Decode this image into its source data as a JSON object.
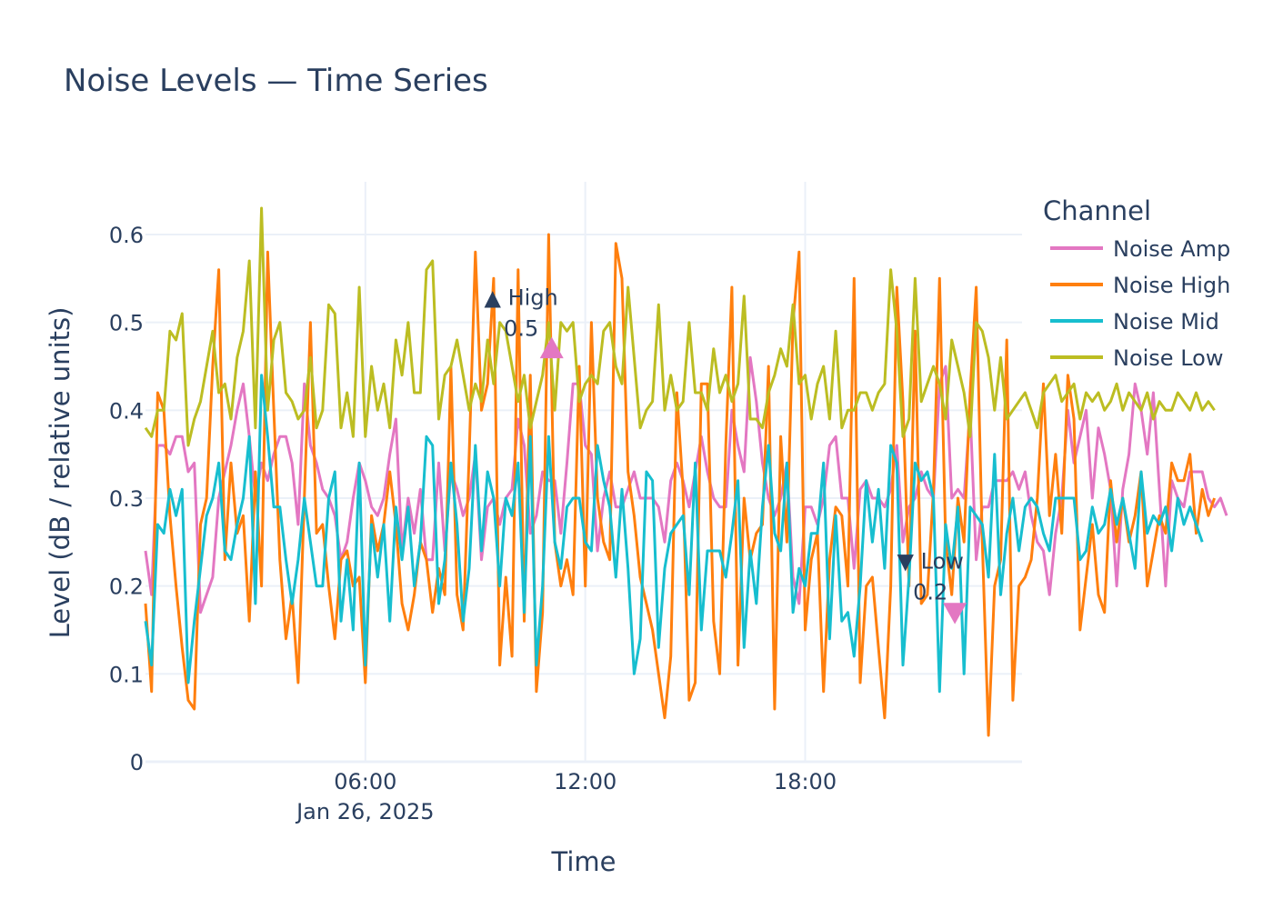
{
  "chart_data": {
    "type": "line",
    "title": "Noise Levels — Time Series",
    "xlabel": "Time",
    "ylabel": "Level (dB / relative units)",
    "x_range": [
      "2025-01-26 00:00",
      "2025-01-26 23:55"
    ],
    "x_step_minutes": 10,
    "ylim": [
      0,
      0.66
    ],
    "x_ticks": [
      {
        "time": "2025-01-26 06:00",
        "label": "06:00",
        "sublabel": "Jan 26, 2025"
      },
      {
        "time": "2025-01-26 12:00",
        "label": "12:00",
        "sublabel": ""
      },
      {
        "time": "2025-01-26 18:00",
        "label": "18:00",
        "sublabel": ""
      }
    ],
    "y_ticks": [
      0,
      0.1,
      0.2,
      0.3,
      0.4,
      0.5,
      0.6
    ],
    "y_tick_labels": [
      "0",
      "0.1",
      "0.2",
      "0.3",
      "0.4",
      "0.5",
      "0.6"
    ],
    "grid": true,
    "legend": {
      "title": "Channel",
      "position": "right"
    },
    "series": [
      {
        "name": "Noise Amp",
        "color": "#e377c2",
        "values": [
          0.24,
          0.19,
          0.36,
          0.36,
          0.35,
          0.37,
          0.37,
          0.33,
          0.34,
          0.17,
          0.19,
          0.21,
          0.3,
          0.33,
          0.36,
          0.4,
          0.43,
          0.37,
          0.3,
          0.34,
          0.32,
          0.35,
          0.37,
          0.37,
          0.34,
          0.27,
          0.43,
          0.36,
          0.34,
          0.31,
          0.3,
          0.28,
          0.23,
          0.25,
          0.3,
          0.34,
          0.32,
          0.29,
          0.28,
          0.3,
          0.35,
          0.39,
          0.24,
          0.3,
          0.26,
          0.31,
          0.23,
          0.23,
          0.34,
          0.24,
          0.33,
          0.31,
          0.28,
          0.3,
          0.35,
          0.23,
          0.29,
          0.3,
          0.27,
          0.3,
          0.31,
          0.39,
          0.36,
          0.26,
          0.28,
          0.33,
          0.32,
          0.32,
          0.26,
          0.34,
          0.43,
          0.43,
          0.36,
          0.35,
          0.24,
          0.3,
          0.33,
          0.29,
          0.29,
          0.31,
          0.33,
          0.3,
          0.3,
          0.3,
          0.29,
          0.25,
          0.32,
          0.34,
          0.32,
          0.29,
          0.33,
          0.37,
          0.33,
          0.3,
          0.29,
          0.29,
          0.4,
          0.36,
          0.33,
          0.46,
          0.41,
          0.34,
          0.3,
          0.28,
          0.3,
          0.34,
          0.21,
          0.18,
          0.29,
          0.29,
          0.27,
          0.3,
          0.36,
          0.37,
          0.3,
          0.3,
          0.22,
          0.31,
          0.32,
          0.3,
          0.3,
          0.29,
          0.31,
          0.36,
          0.25,
          0.29,
          0.3,
          0.33,
          0.31,
          0.3,
          0.43,
          0.45,
          0.3,
          0.31,
          0.3,
          0.4,
          0.23,
          0.29,
          0.29,
          0.32,
          0.32,
          0.32,
          0.33,
          0.31,
          0.33,
          0.28,
          0.25,
          0.24,
          0.19,
          0.26,
          0.3,
          0.4,
          0.34,
          0.37,
          0.4,
          0.3,
          0.38,
          0.35,
          0.31,
          0.2,
          0.31,
          0.35,
          0.43,
          0.4,
          0.35,
          0.42,
          0.31,
          0.2,
          0.32,
          0.3,
          0.29,
          0.33,
          0.33,
          0.33,
          0.3,
          0.29,
          0.3,
          0.28
        ]
      },
      {
        "name": "Noise High",
        "color": "#ff7f0e",
        "values": [
          0.18,
          0.08,
          0.42,
          0.4,
          0.28,
          0.2,
          0.13,
          0.07,
          0.06,
          0.27,
          0.3,
          0.45,
          0.56,
          0.23,
          0.34,
          0.26,
          0.28,
          0.16,
          0.33,
          0.2,
          0.58,
          0.4,
          0.23,
          0.14,
          0.19,
          0.09,
          0.3,
          0.5,
          0.26,
          0.27,
          0.2,
          0.14,
          0.23,
          0.24,
          0.2,
          0.21,
          0.09,
          0.28,
          0.24,
          0.27,
          0.33,
          0.27,
          0.18,
          0.15,
          0.19,
          0.25,
          0.23,
          0.17,
          0.22,
          0.19,
          0.45,
          0.19,
          0.15,
          0.35,
          0.58,
          0.4,
          0.43,
          0.55,
          0.11,
          0.21,
          0.12,
          0.56,
          0.16,
          0.44,
          0.08,
          0.17,
          0.6,
          0.25,
          0.2,
          0.23,
          0.19,
          0.45,
          0.2,
          0.5,
          0.3,
          0.25,
          0.23,
          0.59,
          0.55,
          0.33,
          0.28,
          0.21,
          0.18,
          0.15,
          0.1,
          0.05,
          0.12,
          0.42,
          0.31,
          0.07,
          0.09,
          0.43,
          0.43,
          0.16,
          0.1,
          0.36,
          0.54,
          0.11,
          0.3,
          0.23,
          0.26,
          0.27,
          0.45,
          0.06,
          0.37,
          0.25,
          0.5,
          0.58,
          0.15,
          0.23,
          0.26,
          0.08,
          0.23,
          0.29,
          0.28,
          0.2,
          0.55,
          0.09,
          0.2,
          0.21,
          0.13,
          0.05,
          0.2,
          0.54,
          0.41,
          0.2,
          0.49,
          0.18,
          0.19,
          0.31,
          0.55,
          0.25,
          0.19,
          0.3,
          0.25,
          0.42,
          0.54,
          0.25,
          0.03,
          0.2,
          0.23,
          0.48,
          0.07,
          0.2,
          0.21,
          0.23,
          0.3,
          0.43,
          0.28,
          0.35,
          0.26,
          0.44,
          0.39,
          0.15,
          0.21,
          0.27,
          0.19,
          0.17,
          0.32,
          0.25,
          0.3,
          0.25,
          0.28,
          0.33,
          0.2,
          0.24,
          0.28,
          0.26,
          0.34,
          0.32,
          0.32,
          0.35,
          0.26,
          0.31,
          0.28,
          0.3
        ]
      },
      {
        "name": "Noise Mid",
        "color": "#17becf",
        "values": [
          0.16,
          0.11,
          0.27,
          0.26,
          0.31,
          0.28,
          0.31,
          0.09,
          0.16,
          0.22,
          0.28,
          0.3,
          0.34,
          0.24,
          0.23,
          0.27,
          0.3,
          0.37,
          0.18,
          0.44,
          0.37,
          0.29,
          0.29,
          0.23,
          0.18,
          0.23,
          0.3,
          0.25,
          0.2,
          0.2,
          0.3,
          0.33,
          0.16,
          0.23,
          0.15,
          0.34,
          0.11,
          0.27,
          0.21,
          0.27,
          0.16,
          0.29,
          0.23,
          0.29,
          0.2,
          0.25,
          0.37,
          0.36,
          0.18,
          0.23,
          0.34,
          0.27,
          0.16,
          0.22,
          0.36,
          0.24,
          0.33,
          0.3,
          0.2,
          0.3,
          0.28,
          0.34,
          0.17,
          0.37,
          0.11,
          0.2,
          0.37,
          0.25,
          0.22,
          0.29,
          0.3,
          0.3,
          0.25,
          0.24,
          0.36,
          0.32,
          0.29,
          0.21,
          0.31,
          0.22,
          0.1,
          0.14,
          0.33,
          0.32,
          0.13,
          0.22,
          0.26,
          0.27,
          0.28,
          0.19,
          0.34,
          0.15,
          0.24,
          0.24,
          0.24,
          0.21,
          0.26,
          0.32,
          0.13,
          0.24,
          0.18,
          0.29,
          0.36,
          0.26,
          0.24,
          0.34,
          0.17,
          0.22,
          0.2,
          0.26,
          0.26,
          0.34,
          0.14,
          0.28,
          0.16,
          0.17,
          0.12,
          0.2,
          0.32,
          0.25,
          0.31,
          0.22,
          0.36,
          0.34,
          0.11,
          0.21,
          0.34,
          0.32,
          0.33,
          0.3,
          0.08,
          0.27,
          0.22,
          0.29,
          0.1,
          0.29,
          0.28,
          0.27,
          0.21,
          0.35,
          0.19,
          0.26,
          0.3,
          0.24,
          0.29,
          0.3,
          0.29,
          0.26,
          0.24,
          0.3,
          0.3,
          0.3,
          0.3,
          0.23,
          0.24,
          0.29,
          0.26,
          0.27,
          0.31,
          0.27,
          0.3,
          0.26,
          0.22,
          0.33,
          0.26,
          0.28,
          0.27,
          0.29,
          0.24,
          0.3,
          0.27,
          0.29,
          0.27,
          0.25
        ]
      },
      {
        "name": "Noise Low",
        "color": "#bcbd22",
        "values": [
          0.38,
          0.37,
          0.4,
          0.4,
          0.49,
          0.48,
          0.51,
          0.36,
          0.39,
          0.41,
          0.45,
          0.49,
          0.42,
          0.43,
          0.39,
          0.46,
          0.49,
          0.57,
          0.38,
          0.63,
          0.4,
          0.48,
          0.5,
          0.42,
          0.41,
          0.39,
          0.4,
          0.46,
          0.38,
          0.4,
          0.52,
          0.51,
          0.38,
          0.42,
          0.37,
          0.54,
          0.37,
          0.45,
          0.4,
          0.43,
          0.38,
          0.48,
          0.44,
          0.5,
          0.42,
          0.42,
          0.56,
          0.57,
          0.39,
          0.44,
          0.45,
          0.48,
          0.44,
          0.4,
          0.43,
          0.41,
          0.48,
          0.43,
          0.5,
          0.49,
          0.45,
          0.41,
          0.44,
          0.38,
          0.41,
          0.44,
          0.5,
          0.4,
          0.5,
          0.49,
          0.5,
          0.41,
          0.43,
          0.44,
          0.43,
          0.49,
          0.5,
          0.45,
          0.43,
          0.54,
          0.46,
          0.38,
          0.4,
          0.41,
          0.52,
          0.4,
          0.44,
          0.4,
          0.41,
          0.5,
          0.42,
          0.42,
          0.4,
          0.47,
          0.42,
          0.44,
          0.41,
          0.43,
          0.53,
          0.39,
          0.39,
          0.38,
          0.42,
          0.44,
          0.47,
          0.45,
          0.52,
          0.43,
          0.44,
          0.39,
          0.43,
          0.45,
          0.39,
          0.49,
          0.38,
          0.4,
          0.4,
          0.42,
          0.42,
          0.4,
          0.42,
          0.43,
          0.56,
          0.49,
          0.37,
          0.39,
          0.55,
          0.41,
          0.43,
          0.45,
          0.43,
          0.39,
          0.48,
          0.45,
          0.42,
          0.37,
          0.5,
          0.49,
          0.46,
          0.4,
          0.46,
          0.39,
          0.4,
          0.41,
          0.42,
          0.4,
          0.38,
          0.42,
          0.43,
          0.44,
          0.41,
          0.42,
          0.43,
          0.39,
          0.42,
          0.41,
          0.42,
          0.4,
          0.41,
          0.43,
          0.4,
          0.42,
          0.41,
          0.4,
          0.42,
          0.39,
          0.41,
          0.4,
          0.4,
          0.42,
          0.41,
          0.4,
          0.42,
          0.4,
          0.41,
          0.4
        ]
      }
    ],
    "annotations": [
      {
        "text_line1": "▲ High",
        "text_line2": "0.5",
        "x": "2025-01-26 10:15",
        "y": 0.52,
        "kind": "high"
      },
      {
        "text_line1": "▼ Low",
        "text_line2": "0.2",
        "x": "2025-01-26 21:25",
        "y": 0.22,
        "kind": "low"
      }
    ],
    "markers": [
      {
        "shape": "triangle-up",
        "x": "2025-01-26 11:05",
        "y": 0.47,
        "color": "#e377c2"
      },
      {
        "shape": "triangle-down",
        "x": "2025-01-26 22:05",
        "y": 0.17,
        "color": "#e377c2"
      }
    ]
  }
}
